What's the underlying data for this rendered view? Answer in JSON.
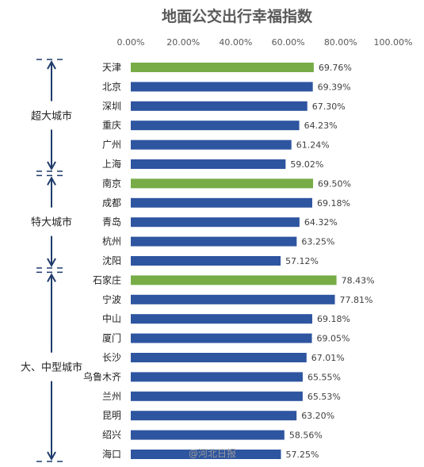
{
  "chart_data": {
    "type": "bar",
    "orientation": "horizontal",
    "title": "地面公交出行幸福指数",
    "x_ticks": [
      "0.00%",
      "20.00%",
      "40.00%",
      "60.00%",
      "80.00%",
      "100.00%"
    ],
    "xlim": [
      0,
      100
    ],
    "categories": [
      "天津",
      "北京",
      "深圳",
      "重庆",
      "广州",
      "上海",
      "南京",
      "成都",
      "青岛",
      "杭州",
      "沈阳",
      "石家庄",
      "宁波",
      "中山",
      "厦门",
      "长沙",
      "乌鲁木齐",
      "兰州",
      "昆明",
      "绍兴",
      "海口"
    ],
    "values": [
      69.76,
      69.39,
      67.3,
      64.23,
      61.24,
      59.02,
      69.5,
      69.18,
      64.32,
      63.25,
      57.12,
      78.43,
      77.81,
      69.18,
      69.05,
      67.01,
      65.55,
      65.53,
      63.2,
      58.56,
      57.25
    ],
    "value_labels": [
      "69.76%",
      "69.39%",
      "67.30%",
      "64.23%",
      "61.24%",
      "59.02%",
      "69.50%",
      "69.18%",
      "64.32%",
      "63.25%",
      "57.12%",
      "78.43%",
      "77.81%",
      "69.18%",
      "69.05%",
      "67.01%",
      "65.55%",
      "65.53%",
      "63.20%",
      "58.56%",
      "57.25%"
    ],
    "highlighted": [
      "天津",
      "南京",
      "石家庄"
    ],
    "groups": [
      {
        "label": "超大城市",
        "first": 0,
        "last": 5
      },
      {
        "label": "特大城市",
        "first": 6,
        "last": 10
      },
      {
        "label": "大、中型城市",
        "first": 11,
        "last": 20
      }
    ],
    "colors": {
      "highlight": "#77ac47",
      "default": "#2e55a0",
      "bracket": "#1f3b6b"
    },
    "grid": false,
    "legend": "none"
  },
  "watermark": "@河北日报"
}
